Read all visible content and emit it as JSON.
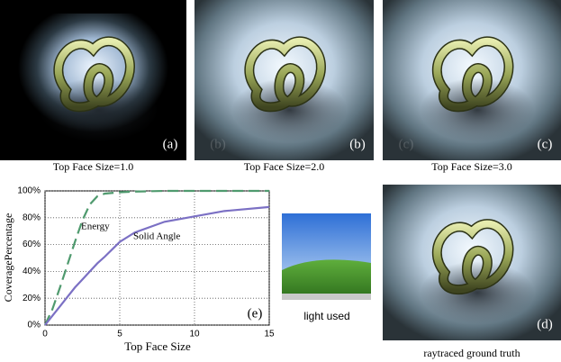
{
  "panels": [
    {
      "label": "(a)",
      "caption": "Top Face Size=1.0"
    },
    {
      "label": "(b)",
      "caption": "Top Face Size=2.0"
    },
    {
      "label": "(c)",
      "caption": "Top Face Size=3.0"
    },
    {
      "label": "(d)",
      "caption": "raytraced ground truth"
    }
  ],
  "light_caption": "light used",
  "chart_data": {
    "type": "line",
    "label": "(e)",
    "xlabel": "Top Face Size",
    "ylabel": "CoveragePercentage",
    "x": [
      0,
      0.5,
      1,
      1.5,
      2,
      2.5,
      3,
      3.5,
      4,
      5,
      6,
      8,
      10,
      12,
      15
    ],
    "series": [
      {
        "name": "Energy",
        "color": "#4f9a6e",
        "dash": true,
        "values": [
          0,
          12,
          28,
          45,
          62,
          78,
          90,
          96,
          98,
          99,
          99.5,
          100,
          100,
          100,
          100
        ]
      },
      {
        "name": "Solid Angle",
        "color": "#7b70c4",
        "dash": false,
        "values": [
          0,
          7,
          14,
          21,
          28,
          34,
          40,
          46,
          51,
          62,
          69,
          77,
          81,
          85,
          88
        ]
      }
    ],
    "xlim": [
      0,
      15
    ],
    "xticks": [
      0,
      5,
      10,
      15
    ],
    "ylim": [
      0,
      100
    ],
    "yticks": [
      {
        "value": 0,
        "label": "0%"
      },
      {
        "value": 20,
        "label": "20%"
      },
      {
        "value": 40,
        "label": "40%"
      },
      {
        "value": 60,
        "label": "60%"
      },
      {
        "value": 80,
        "label": "80%"
      },
      {
        "value": 100,
        "label": "100%"
      }
    ],
    "grid": true
  }
}
